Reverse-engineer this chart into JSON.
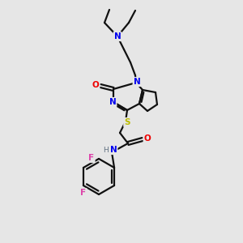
{
  "bg_color": "#e6e6e6",
  "atom_colors": {
    "N": "#0000ee",
    "O": "#ee0000",
    "S": "#bbbb00",
    "F": "#dd44aa",
    "C": "#111111",
    "H": "#607080"
  },
  "figsize": [
    3.0,
    3.0
  ],
  "dpi": 100,
  "lw": 1.6,
  "lw_thick": 1.6
}
